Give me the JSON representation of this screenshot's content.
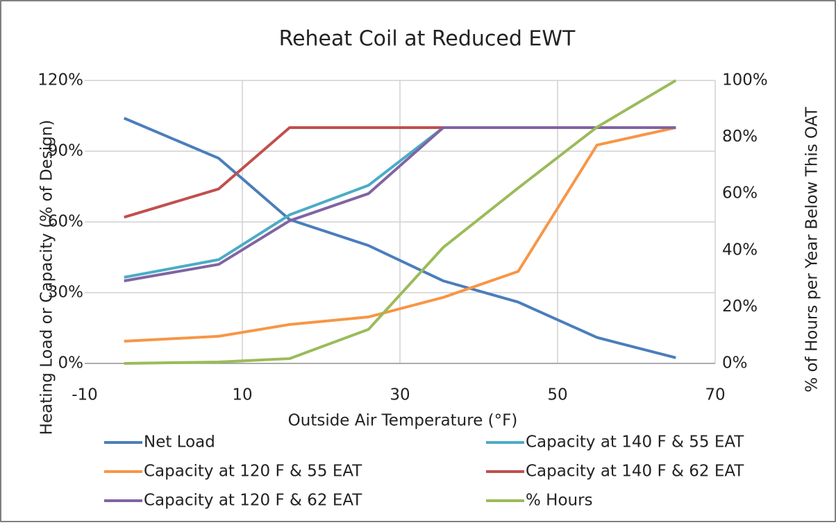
{
  "chart_data": {
    "type": "line",
    "title": "Reheat Coil at Reduced EWT",
    "x_label": "Outside Air Temperature (°F)",
    "y_label": "Heating Load or Capacity (% of Design)",
    "y2_label": "% of Hours per Year Below This OAT",
    "x": [
      -5,
      7,
      16,
      26,
      35.5,
      45,
      55,
      65
    ],
    "xlim": [
      -10,
      70
    ],
    "xticks": [
      -10,
      10,
      30,
      50,
      70
    ],
    "ylim": [
      0,
      120
    ],
    "yticks": [
      {
        "value": 0,
        "label": "0%"
      },
      {
        "value": 30,
        "label": "30%"
      },
      {
        "value": 60,
        "label": "60%"
      },
      {
        "value": 90,
        "label": "90%"
      },
      {
        "value": 120,
        "label": "120%"
      }
    ],
    "y2lim": [
      0,
      100
    ],
    "y2ticks": [
      {
        "value": 0,
        "label": "0%"
      },
      {
        "value": 20,
        "label": "20%"
      },
      {
        "value": 40,
        "label": "40%"
      },
      {
        "value": 60,
        "label": "60%"
      },
      {
        "value": 80,
        "label": "80%"
      },
      {
        "value": 100,
        "label": "100%"
      }
    ],
    "grid": true,
    "series": [
      {
        "name": "Net Load",
        "color": "#4a7ebb",
        "values": [
          104,
          87,
          61,
          50,
          35,
          26,
          11,
          2.4
        ]
      },
      {
        "name": "Capacity at 140 F & 55 EAT",
        "color": "#4bacc6",
        "values": [
          36.5,
          44,
          63,
          75.5,
          100,
          100,
          100,
          100
        ]
      },
      {
        "name": "Capacity at 120 F & 55 EAT",
        "color": "#f79646",
        "values": [
          9.4,
          11.5,
          16.5,
          19.7,
          28,
          39,
          92.6,
          100
        ]
      },
      {
        "name": "Capacity at 140 F & 62 EAT",
        "color": "#c0504d",
        "values": [
          62,
          74,
          100,
          100,
          100,
          100,
          100,
          100
        ]
      },
      {
        "name": "Capacity at 120 F & 62 EAT",
        "color": "#8064a2",
        "values": [
          35,
          42,
          60.5,
          72,
          100,
          100,
          100,
          100
        ]
      },
      {
        "name": "% Hours",
        "color": "#9bbb59",
        "axis": "y2",
        "values": [
          0,
          0.5,
          1.7,
          12,
          41,
          62,
          83.5,
          100
        ]
      }
    ]
  }
}
